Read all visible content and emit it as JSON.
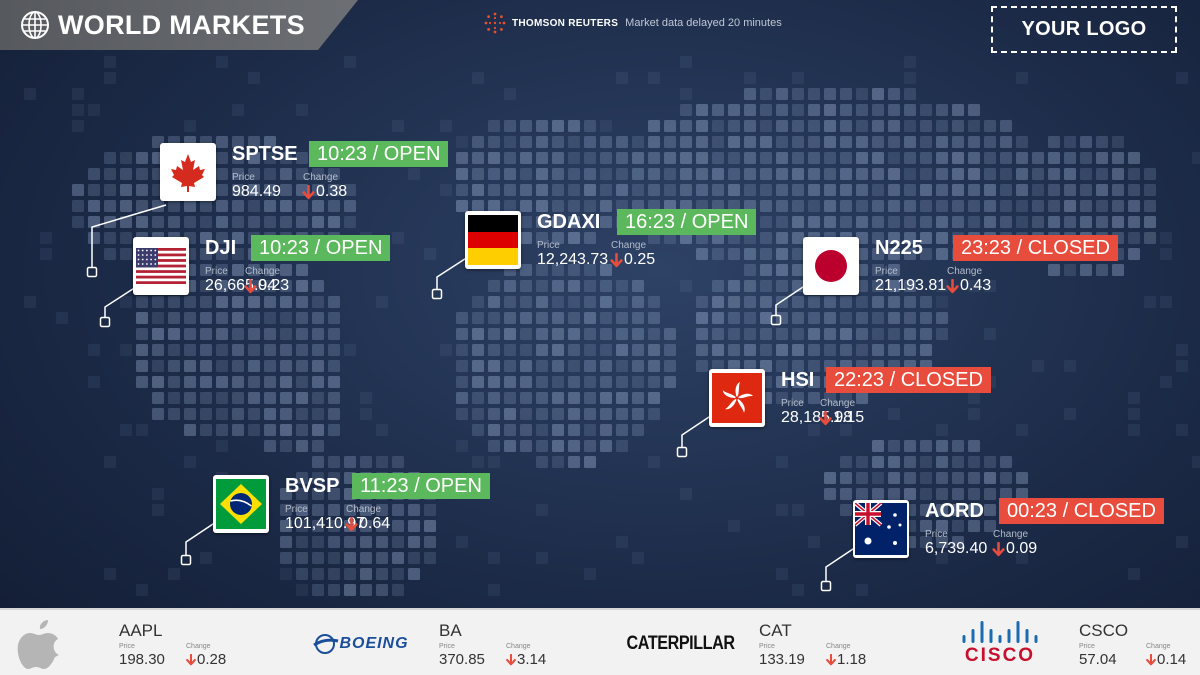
{
  "header": {
    "title": "WORLD MARKETS",
    "provider_name": "THOMSON REUTERS",
    "provider_note": "Market data delayed 20 minutes",
    "logo_placeholder": "YOUR LOGO",
    "globe_icon": "globe-icon",
    "provider_icon": "thomson-reuters-logo-icon"
  },
  "labels": {
    "price": "Price",
    "change": "Change"
  },
  "colors": {
    "open": "#5cb85c",
    "closed": "#e74c3c",
    "down_arrow": "#e74c3c",
    "background": "#1c2b48"
  },
  "markets": [
    {
      "name": "SPTSE",
      "status": "10:23 / OPEN",
      "state": "open",
      "price": "984.49",
      "change": "0.38",
      "direction": "down",
      "flag": "canada-flag-icon"
    },
    {
      "name": "DJI",
      "status": "10:23 / OPEN",
      "state": "open",
      "price": "26,665.94",
      "change": "0.23",
      "direction": "down",
      "flag": "usa-flag-icon"
    },
    {
      "name": "GDAXI",
      "status": "16:23 / OPEN",
      "state": "open",
      "price": "12,243.73",
      "change": "0.25",
      "direction": "down",
      "flag": "germany-flag-icon"
    },
    {
      "name": "N225",
      "status": "23:23 / CLOSED",
      "state": "closed",
      "price": "21,193.81",
      "change": "0.43",
      "direction": "down",
      "flag": "japan-flag-icon"
    },
    {
      "name": "HSI",
      "status": "22:23 / CLOSED",
      "state": "closed",
      "price": "28,185.98",
      "change": "1.15",
      "direction": "down",
      "flag": "hong-kong-flag-icon"
    },
    {
      "name": "BVSP",
      "status": "11:23 / OPEN",
      "state": "open",
      "price": "101,410.97",
      "change": "0.64",
      "direction": "down",
      "flag": "brazil-flag-icon"
    },
    {
      "name": "AORD",
      "status": "00:23 / CLOSED",
      "state": "closed",
      "price": "6,739.40",
      "change": "0.09",
      "direction": "down",
      "flag": "australia-flag-icon"
    }
  ],
  "stocks": [
    {
      "ticker": "AAPL",
      "price": "198.30",
      "change": "0.28",
      "direction": "down",
      "logo": "apple-logo-icon"
    },
    {
      "ticker": "BA",
      "price": "370.85",
      "change": "3.14",
      "direction": "down",
      "logo": "boeing-logo-icon",
      "logo_text": "BOEING"
    },
    {
      "ticker": "CAT",
      "price": "133.19",
      "change": "1.18",
      "direction": "down",
      "logo": "caterpillar-logo-icon",
      "logo_text": "CATERPILLAR"
    },
    {
      "ticker": "CSCO",
      "price": "57.04",
      "change": "0.14",
      "direction": "down",
      "logo": "cisco-logo-icon",
      "logo_text": "CISCO"
    }
  ]
}
